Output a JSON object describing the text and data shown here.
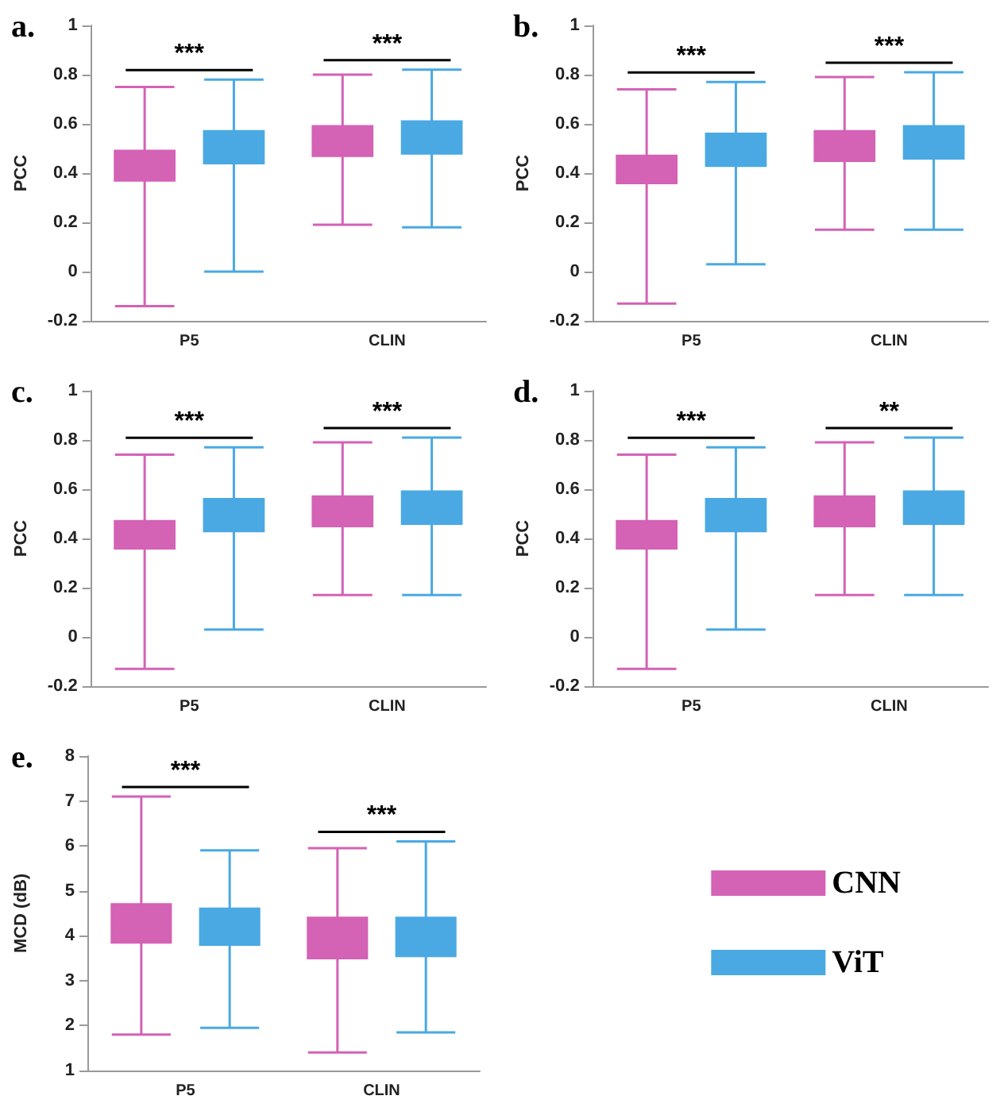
{
  "chart_data": [
    {
      "type": "box",
      "title": "a.",
      "ylabel": "PCC",
      "categories": [
        "P5",
        "CLIN"
      ],
      "ylim": [
        -0.2,
        1
      ],
      "yticks": [
        -0.2,
        0,
        0.2,
        0.4,
        0.6,
        0.8,
        1
      ],
      "grid": false,
      "legend": false,
      "annotations": [
        "***",
        "***"
      ],
      "series": [
        {
          "color": "#d462b5",
          "boxes": [
            {
              "low": -0.14,
              "q1": 0.37,
              "median": 0.43,
              "q3": 0.49,
              "high": 0.75
            },
            {
              "low": 0.19,
              "q1": 0.47,
              "median": 0.535,
              "q3": 0.59,
              "high": 0.8
            }
          ]
        },
        {
          "color": "#4aa9e3",
          "boxes": [
            {
              "low": 0.0,
              "q1": 0.44,
              "median": 0.5,
              "q3": 0.57,
              "high": 0.78
            },
            {
              "low": 0.18,
              "q1": 0.48,
              "median": 0.55,
              "q3": 0.61,
              "high": 0.82
            }
          ]
        }
      ]
    },
    {
      "type": "box",
      "title": "b.",
      "ylabel": "PCC",
      "categories": [
        "P5",
        "CLIN"
      ],
      "ylim": [
        -0.2,
        1
      ],
      "yticks": [
        -0.2,
        0,
        0.2,
        0.4,
        0.6,
        0.8,
        1
      ],
      "grid": false,
      "legend": false,
      "annotations": [
        "***",
        "***"
      ],
      "series": [
        {
          "color": "#d462b5",
          "boxes": [
            {
              "low": -0.13,
              "q1": 0.36,
              "median": 0.42,
              "q3": 0.47,
              "high": 0.74
            },
            {
              "low": 0.17,
              "q1": 0.45,
              "median": 0.51,
              "q3": 0.57,
              "high": 0.79
            }
          ]
        },
        {
          "color": "#4aa9e3",
          "boxes": [
            {
              "low": 0.03,
              "q1": 0.43,
              "median": 0.49,
              "q3": 0.56,
              "high": 0.77
            },
            {
              "low": 0.17,
              "q1": 0.46,
              "median": 0.52,
              "q3": 0.59,
              "high": 0.81
            }
          ]
        }
      ]
    },
    {
      "type": "box",
      "title": "c.",
      "ylabel": "PCC",
      "categories": [
        "P5",
        "CLIN"
      ],
      "ylim": [
        -0.2,
        1
      ],
      "yticks": [
        -0.2,
        0,
        0.2,
        0.4,
        0.6,
        0.8,
        1
      ],
      "grid": false,
      "legend": false,
      "annotations": [
        "***",
        "***"
      ],
      "series": [
        {
          "color": "#d462b5",
          "boxes": [
            {
              "low": -0.13,
              "q1": 0.36,
              "median": 0.42,
              "q3": 0.47,
              "high": 0.74
            },
            {
              "low": 0.17,
              "q1": 0.45,
              "median": 0.51,
              "q3": 0.57,
              "high": 0.79
            }
          ]
        },
        {
          "color": "#4aa9e3",
          "boxes": [
            {
              "low": 0.03,
              "q1": 0.43,
              "median": 0.49,
              "q3": 0.56,
              "high": 0.77
            },
            {
              "low": 0.17,
              "q1": 0.46,
              "median": 0.52,
              "q3": 0.59,
              "high": 0.81
            }
          ]
        }
      ]
    },
    {
      "type": "box",
      "title": "d.",
      "ylabel": "PCC",
      "categories": [
        "P5",
        "CLIN"
      ],
      "ylim": [
        -0.2,
        1
      ],
      "yticks": [
        -0.2,
        0,
        0.2,
        0.4,
        0.6,
        0.8,
        1
      ],
      "grid": false,
      "legend": false,
      "annotations": [
        "***",
        "**"
      ],
      "series": [
        {
          "color": "#d462b5",
          "boxes": [
            {
              "low": -0.13,
              "q1": 0.36,
              "median": 0.42,
              "q3": 0.47,
              "high": 0.74
            },
            {
              "low": 0.17,
              "q1": 0.45,
              "median": 0.51,
              "q3": 0.57,
              "high": 0.79
            }
          ]
        },
        {
          "color": "#4aa9e3",
          "boxes": [
            {
              "low": 0.03,
              "q1": 0.43,
              "median": 0.49,
              "q3": 0.56,
              "high": 0.77
            },
            {
              "low": 0.17,
              "q1": 0.46,
              "median": 0.52,
              "q3": 0.59,
              "high": 0.81
            }
          ]
        }
      ]
    },
    {
      "type": "box",
      "title": "e.",
      "ylabel": "MCD (dB)",
      "categories": [
        "P5",
        "CLIN"
      ],
      "ylim": [
        1,
        8
      ],
      "yticks": [
        1,
        2,
        3,
        4,
        5,
        6,
        7,
        8
      ],
      "grid": false,
      "legend": "right",
      "annotations": [
        "***",
        "***"
      ],
      "series": [
        {
          "name": "CNN",
          "color": "#d462b5",
          "boxes": [
            {
              "low": 1.8,
              "q1": 3.85,
              "median": 4.3,
              "q3": 4.7,
              "high": 7.1
            },
            {
              "low": 1.4,
              "q1": 3.5,
              "median": 3.9,
              "q3": 4.4,
              "high": 5.95
            }
          ]
        },
        {
          "name": "ViT",
          "color": "#4aa9e3",
          "boxes": [
            {
              "low": 1.95,
              "q1": 3.8,
              "median": 4.2,
              "q3": 4.6,
              "high": 5.9
            },
            {
              "low": 1.85,
              "q1": 3.55,
              "median": 3.95,
              "q3": 4.4,
              "high": 6.1
            }
          ]
        }
      ]
    }
  ]
}
